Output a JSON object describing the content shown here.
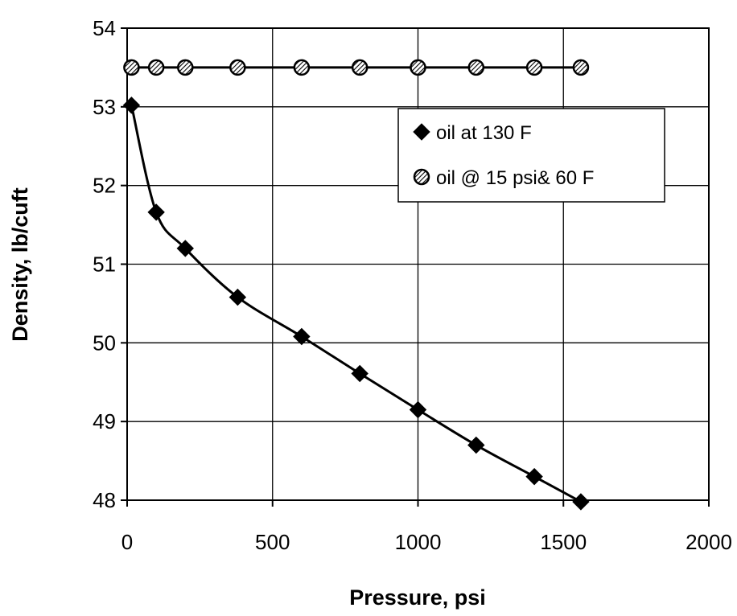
{
  "chart_data": {
    "type": "scatter",
    "title": "",
    "xlabel": "Pressure, psi",
    "ylabel": "Density, lb/cuft",
    "xlim": [
      0,
      2000
    ],
    "ylim": [
      48,
      54
    ],
    "xticks": [
      "0",
      "500",
      "1000",
      "1500",
      "2000"
    ],
    "yticks": [
      "48",
      "49",
      "50",
      "51",
      "52",
      "53",
      "54"
    ],
    "grid": true,
    "legend_position": "top-right",
    "series": [
      {
        "name": "oil at 130 F",
        "marker": "diamond",
        "color": "#000000",
        "trendline": true,
        "x": [
          15,
          100,
          200,
          380,
          600,
          800,
          1000,
          1200,
          1400,
          1560
        ],
        "y": [
          53.02,
          51.66,
          51.2,
          50.58,
          50.08,
          49.61,
          49.15,
          48.7,
          48.3,
          47.98
        ]
      },
      {
        "name": "oil @ 15 psi& 60 F",
        "marker": "hatched-circle",
        "color": "#000000",
        "trendline": true,
        "x": [
          15,
          100,
          200,
          380,
          600,
          800,
          1000,
          1200,
          1400,
          1560
        ],
        "y": [
          53.5,
          53.5,
          53.5,
          53.5,
          53.5,
          53.5,
          53.5,
          53.5,
          53.5,
          53.5
        ]
      }
    ]
  }
}
